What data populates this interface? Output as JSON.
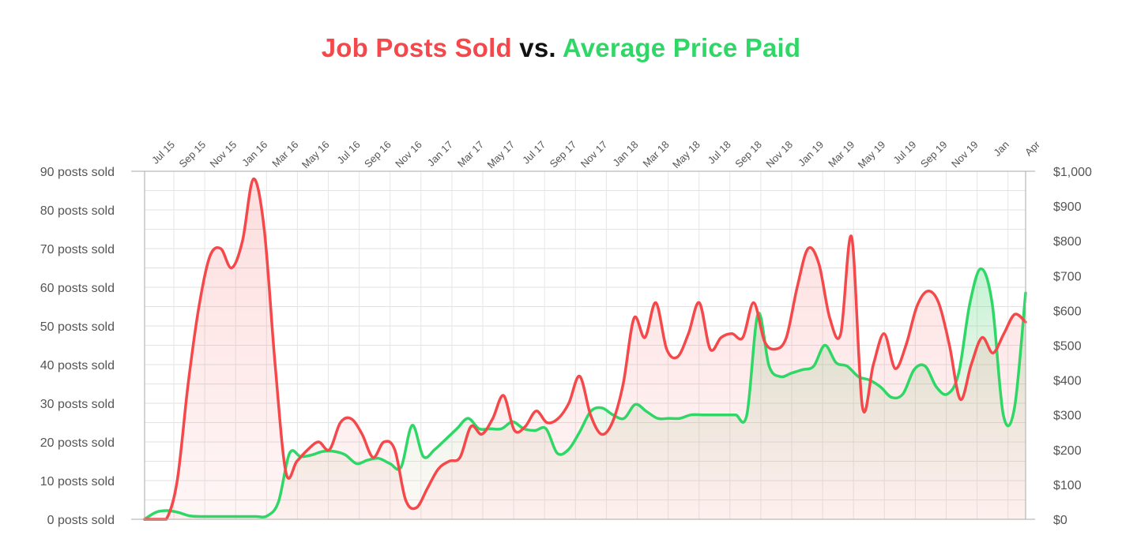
{
  "title": {
    "part1": "Job Posts Sold",
    "part2": "vs.",
    "part3": "Average Price Paid"
  },
  "colors": {
    "posts": "#f4484a",
    "price": "#2ed766",
    "grid": "#e2e2e2",
    "vgrid": "#e6e6e6",
    "axis": "#aaaaaa"
  },
  "chart_data": {
    "type": "line",
    "title": "Job Posts Sold vs. Average Price Paid",
    "x_ticks": [
      "Jul 15",
      "Sep 15",
      "Nov 15",
      "Jan 16",
      "Mar 16",
      "May 16",
      "Jul 16",
      "Sep 16",
      "Nov 16",
      "Jan 17",
      "Mar 17",
      "May 17",
      "Jul 17",
      "Sep 17",
      "Nov 17",
      "Jan 18",
      "Mar 18",
      "May 18",
      "Jul 18",
      "Sep 18",
      "Nov 18",
      "Jan 19",
      "Mar 19",
      "May 19",
      "Jul 19",
      "Sep 19",
      "Nov 19",
      "Jan",
      "Apr"
    ],
    "y_left_ticks": [
      "0 posts sold",
      "10 posts sold",
      "20 posts sold",
      "30 posts sold",
      "40 posts sold",
      "50 posts sold",
      "60 posts sold",
      "70 posts sold",
      "80 posts sold",
      "90 posts sold"
    ],
    "y_right_ticks": [
      "$0",
      "$100",
      "$200",
      "$300",
      "$400",
      "$500",
      "$600",
      "$700",
      "$800",
      "$900",
      "$1,000"
    ],
    "ylim_left": [
      0,
      90
    ],
    "ylim_right": [
      0,
      1000
    ],
    "grid": true,
    "series": [
      {
        "name": "Job Posts Sold",
        "axis": "left",
        "values": [
          0,
          0,
          0,
          10,
          35,
          55,
          68,
          70,
          65,
          72,
          88,
          75,
          40,
          12,
          15,
          18,
          20,
          18,
          25,
          26,
          22,
          16,
          20,
          18,
          5,
          3,
          8,
          13,
          15,
          16,
          24,
          22,
          26,
          32,
          23,
          24,
          28,
          25,
          26,
          30,
          37,
          27,
          22,
          25,
          35,
          52,
          47,
          56,
          44,
          42,
          48,
          56,
          44,
          47,
          48,
          47,
          56,
          46,
          44,
          47,
          60,
          70,
          66,
          52,
          48,
          73,
          29,
          40,
          48,
          39,
          45,
          55,
          59,
          56,
          45,
          31,
          40,
          47,
          43,
          48,
          53,
          51
        ],
        "x_start": "Jun 15",
        "step_weeks": 2
      },
      {
        "name": "Average Price Paid",
        "axis": "right",
        "values": [
          0,
          20,
          25,
          20,
          10,
          8,
          8,
          8,
          8,
          8,
          8,
          10,
          50,
          190,
          180,
          185,
          195,
          195,
          185,
          160,
          170,
          175,
          160,
          150,
          270,
          180,
          200,
          230,
          260,
          290,
          260,
          260,
          260,
          280,
          260,
          255,
          260,
          190,
          200,
          250,
          310,
          320,
          300,
          290,
          330,
          310,
          290,
          290,
          290,
          300,
          300,
          300,
          300,
          300,
          300,
          590,
          440,
          410,
          420,
          430,
          440,
          500,
          450,
          440,
          410,
          400,
          380,
          350,
          360,
          430,
          440,
          380,
          360,
          420,
          620,
          720,
          620,
          300,
          320,
          650
        ],
        "x_start": "Jun 15",
        "step_weeks": 2
      }
    ]
  }
}
